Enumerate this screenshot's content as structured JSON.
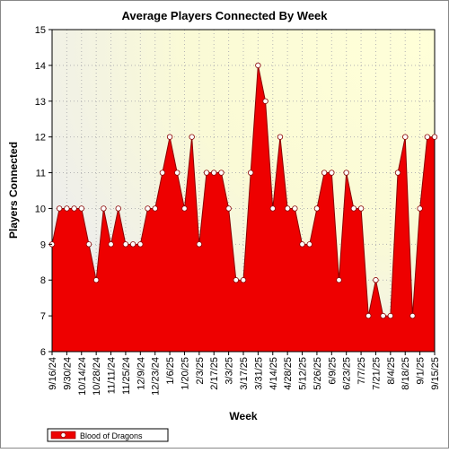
{
  "chart_data": {
    "type": "area",
    "title": "Average Players Connected By Week",
    "xlabel": "Week",
    "ylabel": "Players Connected",
    "ylim": [
      6,
      15
    ],
    "yticks": [
      6,
      7,
      8,
      9,
      10,
      11,
      12,
      13,
      14,
      15
    ],
    "grid": true,
    "legend_position": "bottom-left",
    "x_tick_labels": [
      "9/16/24",
      "9/30/24",
      "10/14/24",
      "10/28/24",
      "11/11/24",
      "11/25/24",
      "12/9/24",
      "12/23/24",
      "1/6/25",
      "1/20/25",
      "2/3/25",
      "2/17/25",
      "3/3/25",
      "3/17/25",
      "3/31/25",
      "4/14/25",
      "4/28/25",
      "5/12/25",
      "5/26/25",
      "6/9/25",
      "6/23/25",
      "7/7/25",
      "7/21/25",
      "8/4/25",
      "8/18/25",
      "9/1/25",
      "9/15/25"
    ],
    "series": [
      {
        "name": "Blood of Dragons",
        "color": "#ee0000",
        "x": [
          "9/16/24",
          "9/23/24",
          "9/30/24",
          "10/7/24",
          "10/14/24",
          "10/21/24",
          "10/28/24",
          "11/4/24",
          "11/11/24",
          "11/18/24",
          "11/25/24",
          "12/2/24",
          "12/9/24",
          "12/16/24",
          "12/23/24",
          "12/30/24",
          "1/6/25",
          "1/13/25",
          "1/20/25",
          "1/27/25",
          "2/3/25",
          "2/10/25",
          "2/17/25",
          "2/24/25",
          "3/3/25",
          "3/10/25",
          "3/17/25",
          "3/24/25",
          "3/31/25",
          "4/7/25",
          "4/14/25",
          "4/21/25",
          "4/28/25",
          "5/5/25",
          "5/12/25",
          "5/19/25",
          "5/26/25",
          "6/2/25",
          "6/9/25",
          "6/16/25",
          "6/23/25",
          "6/30/25",
          "7/7/25",
          "7/14/25",
          "7/21/25",
          "7/28/25",
          "8/4/25",
          "8/11/25",
          "8/18/25",
          "8/25/25",
          "9/1/25",
          "9/8/25",
          "9/15/25"
        ],
        "values": [
          9,
          10,
          10,
          10,
          10,
          9,
          8,
          10,
          9,
          10,
          9,
          9,
          9,
          10,
          10,
          11,
          12,
          11,
          10,
          12,
          9,
          11,
          11,
          11,
          10,
          8,
          8,
          11,
          14,
          13,
          10,
          12,
          10,
          10,
          9,
          9,
          10,
          11,
          11,
          8,
          11,
          10,
          10,
          7,
          8,
          7,
          7,
          11,
          12,
          7,
          10,
          12,
          12
        ]
      }
    ]
  }
}
